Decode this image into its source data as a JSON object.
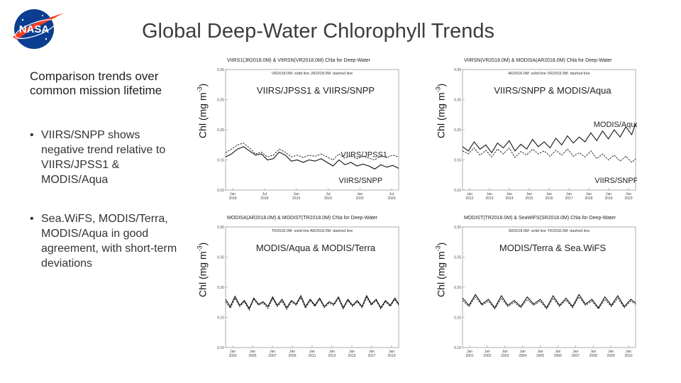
{
  "page": {
    "title": "Global Deep-Water Chlorophyll Trends",
    "logo_text": "NASA",
    "subheading": "Comparison trends over common mission lifetime",
    "bullets": [
      "VIIRS/SNPP shows negative trend relative to VIIRS/JPSS1 & MODIS/Aqua",
      "Sea.WiFS, MODIS/Terra, MODIS/Aqua in good agreement, with short-term deviations"
    ],
    "colors": {
      "logo_blue": "#0b3d91",
      "logo_red": "#fc3d21",
      "line": "#111111"
    }
  },
  "chart_data": [
    {
      "type": "line",
      "title": "VIIRS1(JR2018.0M) & VIIRSN(VR2018.0M)  Chla for Deep-Water",
      "subtitle": "VR2018.0M: solid line  JR2018.0M: dashed line",
      "annotation": "VIIRS/JPSS1 & VIIRS/SNPP",
      "labels": [
        "VIIRS/JPSS1",
        "VIIRS/SNPP"
      ],
      "ylabel": "Chl (mg m-3)",
      "ylim": [
        0.1,
        0.3
      ],
      "yticks": [
        "0.30",
        "0.25",
        "0.20",
        "0.15",
        "0.10"
      ],
      "xticks": [
        {
          "mon": "Jan",
          "year": "2018"
        },
        {
          "mon": "Jul",
          "year": "2018"
        },
        {
          "mon": "Jan",
          "year": "2019"
        },
        {
          "mon": "Jul",
          "year": "2019"
        },
        {
          "mon": "Jan",
          "year": "2020"
        },
        {
          "mon": "Jul",
          "year": "2020"
        }
      ],
      "x_range": [
        2018.0,
        2020.9
      ],
      "series": [
        {
          "style": "solid",
          "x": [
            2018.0,
            2018.1,
            2018.2,
            2018.3,
            2018.4,
            2018.5,
            2018.6,
            2018.7,
            2018.8,
            2018.9,
            2019.0,
            2019.1,
            2019.2,
            2019.3,
            2019.4,
            2019.5,
            2019.6,
            2019.7,
            2019.8,
            2019.9,
            2020.0,
            2020.1,
            2020.2,
            2020.3,
            2020.4,
            2020.5,
            2020.6,
            2020.7,
            2020.8,
            2020.9
          ],
          "y": [
            0.155,
            0.16,
            0.168,
            0.172,
            0.165,
            0.158,
            0.16,
            0.15,
            0.152,
            0.163,
            0.158,
            0.148,
            0.15,
            0.146,
            0.15,
            0.148,
            0.152,
            0.146,
            0.14,
            0.15,
            0.142,
            0.146,
            0.14,
            0.143,
            0.14,
            0.135,
            0.142,
            0.138,
            0.141,
            0.136
          ]
        },
        {
          "style": "dashed",
          "x": [
            2018.0,
            2018.1,
            2018.2,
            2018.3,
            2018.4,
            2018.5,
            2018.6,
            2018.7,
            2018.8,
            2018.9,
            2019.0,
            2019.1,
            2019.2,
            2019.3,
            2019.4,
            2019.5,
            2019.6,
            2019.7,
            2019.8,
            2019.9,
            2020.0,
            2020.1,
            2020.2,
            2020.3,
            2020.4,
            2020.5,
            2020.6,
            2020.7,
            2020.8,
            2020.9
          ],
          "y": [
            0.162,
            0.168,
            0.175,
            0.178,
            0.17,
            0.16,
            0.163,
            0.155,
            0.158,
            0.168,
            0.163,
            0.155,
            0.158,
            0.154,
            0.158,
            0.156,
            0.16,
            0.155,
            0.15,
            0.16,
            0.153,
            0.157,
            0.152,
            0.156,
            0.153,
            0.15,
            0.157,
            0.154,
            0.158,
            0.155
          ]
        }
      ]
    },
    {
      "type": "line",
      "title": "VIIRSN(VR2018.0M) & MODISA(AR2018.0M)  Chla for Deep-Water",
      "subtitle": "AR2018.0M: solid line  VR2018.0M: dashed line",
      "annotation": "VIIRS/SNPP & MODIS/Aqua",
      "labels": [
        "MODIS/Aqua",
        "VIIRS/SNPP"
      ],
      "ylabel": "Chl (mg m-3)",
      "ylim": [
        0.1,
        0.3
      ],
      "yticks": [
        "0.30",
        "0.25",
        "0.20",
        "0.15",
        "0.10"
      ],
      "xticks": [
        {
          "mon": "Jan",
          "year": "2012"
        },
        {
          "mon": "Jan",
          "year": "2013"
        },
        {
          "mon": "Jan",
          "year": "2014"
        },
        {
          "mon": "Jan",
          "year": "2015"
        },
        {
          "mon": "Jan",
          "year": "2016"
        },
        {
          "mon": "Jan",
          "year": "2017"
        },
        {
          "mon": "Jan",
          "year": "2018"
        },
        {
          "mon": "Jan",
          "year": "2019"
        },
        {
          "mon": "Jan",
          "year": "2020"
        }
      ],
      "x_range": [
        2012.0,
        2020.9
      ],
      "series": [
        {
          "style": "solid",
          "x": [
            2012.0,
            2012.3,
            2012.6,
            2012.9,
            2013.2,
            2013.5,
            2013.8,
            2014.1,
            2014.4,
            2014.7,
            2015.0,
            2015.3,
            2015.6,
            2015.9,
            2016.2,
            2016.5,
            2016.8,
            2017.1,
            2017.4,
            2017.7,
            2018.0,
            2018.3,
            2018.6,
            2018.9,
            2019.2,
            2019.5,
            2019.8,
            2020.1,
            2020.4,
            2020.7,
            2020.9
          ],
          "y": [
            0.172,
            0.165,
            0.18,
            0.168,
            0.175,
            0.162,
            0.178,
            0.17,
            0.182,
            0.165,
            0.176,
            0.168,
            0.184,
            0.172,
            0.18,
            0.17,
            0.186,
            0.175,
            0.19,
            0.178,
            0.188,
            0.18,
            0.195,
            0.182,
            0.198,
            0.185,
            0.2,
            0.188,
            0.205,
            0.192,
            0.21
          ]
        },
        {
          "style": "dashed",
          "x": [
            2012.0,
            2012.3,
            2012.6,
            2012.9,
            2013.2,
            2013.5,
            2013.8,
            2014.1,
            2014.4,
            2014.7,
            2015.0,
            2015.3,
            2015.6,
            2015.9,
            2016.2,
            2016.5,
            2016.8,
            2017.1,
            2017.4,
            2017.7,
            2018.0,
            2018.3,
            2018.6,
            2018.9,
            2019.2,
            2019.5,
            2019.8,
            2020.1,
            2020.4,
            2020.7,
            2020.9
          ],
          "y": [
            0.165,
            0.16,
            0.17,
            0.158,
            0.166,
            0.155,
            0.168,
            0.16,
            0.17,
            0.154,
            0.164,
            0.158,
            0.168,
            0.16,
            0.165,
            0.156,
            0.166,
            0.158,
            0.168,
            0.156,
            0.162,
            0.155,
            0.165,
            0.152,
            0.16,
            0.15,
            0.158,
            0.148,
            0.156,
            0.146,
            0.152
          ]
        }
      ]
    },
    {
      "type": "line",
      "title": "MODISA(AR2018.0M) & MODIST(TR2018.0M)  Chla for Deep-Water",
      "subtitle": "TR2018.0M: solid line  AR2018.0M: dashed line",
      "annotation": "MODIS/Aqua & MODIS/Terra",
      "labels": [],
      "ylabel": "Chl (mg m-3)",
      "ylim": [
        0.1,
        0.3
      ],
      "yticks": [
        "0.30",
        "0.25",
        "0.20",
        "0.15",
        "0.10"
      ],
      "xticks": [
        {
          "mon": "Jan",
          "year": "2003"
        },
        {
          "mon": "Jan",
          "year": "2005"
        },
        {
          "mon": "Jan",
          "year": "2007"
        },
        {
          "mon": "Jan",
          "year": "2009"
        },
        {
          "mon": "Jan",
          "year": "2011"
        },
        {
          "mon": "Jan",
          "year": "2013"
        },
        {
          "mon": "Jan",
          "year": "2015"
        },
        {
          "mon": "Jan",
          "year": "2017"
        },
        {
          "mon": "Jan",
          "year": "2019"
        }
      ],
      "x_range": [
        2002.5,
        2020.9
      ],
      "series": [
        {
          "style": "solid",
          "x": [
            2002.5,
            2003.0,
            2003.5,
            2004.0,
            2004.5,
            2005.0,
            2005.5,
            2006.0,
            2006.5,
            2007.0,
            2007.5,
            2008.0,
            2008.5,
            2009.0,
            2009.5,
            2010.0,
            2010.5,
            2011.0,
            2011.5,
            2012.0,
            2012.5,
            2013.0,
            2013.5,
            2014.0,
            2014.5,
            2015.0,
            2015.5,
            2016.0,
            2016.5,
            2017.0,
            2017.5,
            2018.0,
            2018.5,
            2019.0,
            2019.5,
            2020.0,
            2020.5,
            2020.9
          ],
          "y": [
            0.18,
            0.168,
            0.185,
            0.17,
            0.178,
            0.165,
            0.182,
            0.172,
            0.176,
            0.168,
            0.184,
            0.17,
            0.18,
            0.166,
            0.178,
            0.172,
            0.186,
            0.168,
            0.18,
            0.17,
            0.182,
            0.168,
            0.176,
            0.172,
            0.184,
            0.166,
            0.18,
            0.17,
            0.178,
            0.168,
            0.186,
            0.172,
            0.18,
            0.166,
            0.178,
            0.17,
            0.182,
            0.172
          ]
        },
        {
          "style": "dashed",
          "x": [
            2002.5,
            2003.0,
            2003.5,
            2004.0,
            2004.5,
            2005.0,
            2005.5,
            2006.0,
            2006.5,
            2007.0,
            2007.5,
            2008.0,
            2008.5,
            2009.0,
            2009.5,
            2010.0,
            2010.5,
            2011.0,
            2011.5,
            2012.0,
            2012.5,
            2013.0,
            2013.5,
            2014.0,
            2014.5,
            2015.0,
            2015.5,
            2016.0,
            2016.5,
            2017.0,
            2017.5,
            2018.0,
            2018.5,
            2019.0,
            2019.5,
            2020.0,
            2020.5,
            2020.9
          ],
          "y": [
            0.176,
            0.165,
            0.182,
            0.168,
            0.176,
            0.162,
            0.18,
            0.17,
            0.174,
            0.165,
            0.181,
            0.168,
            0.177,
            0.163,
            0.176,
            0.17,
            0.183,
            0.165,
            0.178,
            0.168,
            0.18,
            0.166,
            0.174,
            0.17,
            0.181,
            0.164,
            0.178,
            0.168,
            0.176,
            0.166,
            0.183,
            0.17,
            0.178,
            0.164,
            0.176,
            0.168,
            0.18,
            0.17
          ]
        }
      ]
    },
    {
      "type": "line",
      "title": "MODIST(TR2018.0M) & SeaWiFS(SR2018.0M)  Chla for Deep-Water",
      "subtitle": "SR2018.0M: solid line  TR2018.0M: dashed line",
      "annotation": "MODIS/Terra & Sea.WiFS",
      "labels": [],
      "ylabel": "Chl (mg m-3)",
      "ylim": [
        0.1,
        0.3
      ],
      "yticks": [
        "0.30",
        "0.25",
        "0.20",
        "0.15",
        "0.10"
      ],
      "xticks": [
        {
          "mon": "Jan",
          "year": "2001"
        },
        {
          "mon": "Jan",
          "year": "2002"
        },
        {
          "mon": "Jan",
          "year": "2003"
        },
        {
          "mon": "Jan",
          "year": "2004"
        },
        {
          "mon": "Jan",
          "year": "2005"
        },
        {
          "mon": "Jan",
          "year": "2006"
        },
        {
          "mon": "Jan",
          "year": "2007"
        },
        {
          "mon": "Jan",
          "year": "2008"
        },
        {
          "mon": "Jan",
          "year": "2009"
        },
        {
          "mon": "Jan",
          "year": "2010"
        }
      ],
      "x_range": [
        2000.2,
        2010.9
      ],
      "series": [
        {
          "style": "solid",
          "x": [
            2000.2,
            2000.6,
            2001.0,
            2001.4,
            2001.8,
            2002.2,
            2002.6,
            2003.0,
            2003.4,
            2003.8,
            2004.2,
            2004.6,
            2005.0,
            2005.4,
            2005.8,
            2006.2,
            2006.6,
            2007.0,
            2007.4,
            2007.8,
            2008.2,
            2008.6,
            2009.0,
            2009.4,
            2009.8,
            2010.2,
            2010.6,
            2010.9
          ],
          "y": [
            0.182,
            0.17,
            0.188,
            0.172,
            0.18,
            0.166,
            0.186,
            0.17,
            0.178,
            0.168,
            0.184,
            0.172,
            0.18,
            0.166,
            0.186,
            0.17,
            0.182,
            0.168,
            0.188,
            0.172,
            0.18,
            0.166,
            0.184,
            0.17,
            0.186,
            0.168,
            0.18,
            0.174
          ]
        },
        {
          "style": "dashed",
          "x": [
            2000.2,
            2000.6,
            2001.0,
            2001.4,
            2001.8,
            2002.2,
            2002.6,
            2003.0,
            2003.4,
            2003.8,
            2004.2,
            2004.6,
            2005.0,
            2005.4,
            2005.8,
            2006.2,
            2006.6,
            2007.0,
            2007.4,
            2007.8,
            2008.2,
            2008.6,
            2009.0,
            2009.4,
            2009.8,
            2010.2,
            2010.6,
            2010.9
          ],
          "y": [
            0.178,
            0.168,
            0.184,
            0.17,
            0.177,
            0.164,
            0.182,
            0.168,
            0.175,
            0.166,
            0.18,
            0.17,
            0.177,
            0.164,
            0.182,
            0.168,
            0.179,
            0.166,
            0.184,
            0.17,
            0.177,
            0.164,
            0.18,
            0.168,
            0.182,
            0.166,
            0.177,
            0.172
          ]
        }
      ]
    }
  ]
}
